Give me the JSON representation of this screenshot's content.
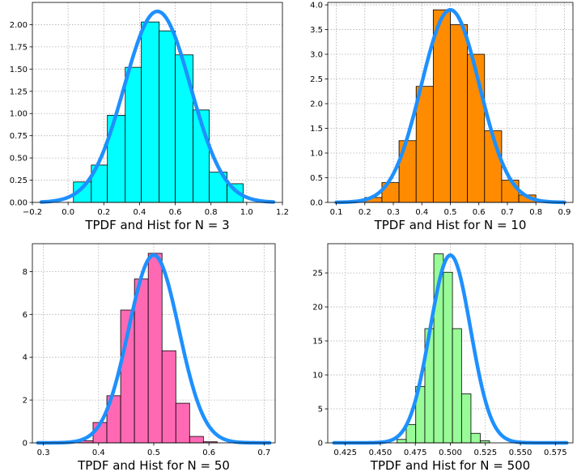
{
  "chart_data": [
    {
      "type": "bar",
      "xlabel": "TPDF and Hist for N = 3",
      "bar_color": "#00ffff",
      "curve_color": "#1e90ff",
      "xlim": [
        -0.2,
        1.2
      ],
      "ylim": [
        0,
        2.25
      ],
      "xticks": [
        -0.2,
        0.0,
        0.2,
        0.4,
        0.6,
        0.8,
        1.0,
        1.2
      ],
      "xtick_labels": [
        "−0.2",
        "0.0",
        "0.2",
        "0.4",
        "0.6",
        "0.8",
        "1.0",
        "1.2"
      ],
      "yticks": [
        0.0,
        0.25,
        0.5,
        0.75,
        1.0,
        1.25,
        1.5,
        1.75,
        2.0
      ],
      "ytick_labels": [
        "0.00",
        "0.25",
        "0.50",
        "0.75",
        "1.00",
        "1.25",
        "1.50",
        "1.75",
        "2.00"
      ],
      "bin_edges": [
        0.03,
        0.13,
        0.22,
        0.32,
        0.41,
        0.51,
        0.6,
        0.7,
        0.79,
        0.89,
        0.98
      ],
      "values": [
        0.23,
        0.42,
        0.98,
        1.52,
        2.03,
        1.93,
        1.66,
        1.04,
        0.34,
        0.21
      ],
      "curve": {
        "mean": 0.5,
        "std": 0.1856,
        "x_range": [
          -0.15,
          1.15
        ]
      },
      "grid": true
    },
    {
      "type": "bar",
      "xlabel": "TPDF and Hist for N = 10",
      "bar_color": "#ff8c00",
      "curve_color": "#1e90ff",
      "xlim": [
        0.07,
        0.93
      ],
      "ylim": [
        0,
        4.05
      ],
      "xticks": [
        0.1,
        0.2,
        0.3,
        0.4,
        0.5,
        0.6,
        0.7,
        0.8,
        0.9
      ],
      "xtick_labels": [
        "0.1",
        "0.2",
        "0.3",
        "0.4",
        "0.5",
        "0.6",
        "0.7",
        "0.8",
        "0.9"
      ],
      "yticks": [
        0.0,
        0.5,
        1.0,
        1.5,
        2.0,
        2.5,
        3.0,
        3.5,
        4.0
      ],
      "ytick_labels": [
        "0.0",
        "0.5",
        "1.0",
        "1.5",
        "2.0",
        "2.5",
        "3.0",
        "3.5",
        "4.0"
      ],
      "bin_edges": [
        0.2,
        0.26,
        0.32,
        0.38,
        0.44,
        0.5,
        0.56,
        0.62,
        0.68,
        0.74,
        0.8
      ],
      "values": [
        0.1,
        0.4,
        1.25,
        2.35,
        3.9,
        3.6,
        3.0,
        1.45,
        0.45,
        0.15
      ],
      "curve": {
        "mean": 0.5,
        "std": 0.1023,
        "x_range": [
          0.1,
          0.9
        ]
      },
      "grid": true
    },
    {
      "type": "bar",
      "xlabel": "TPDF and Hist for N = 50",
      "bar_color": "#ff69b4",
      "curve_color": "#1e90ff",
      "xlim": [
        0.28,
        0.72
      ],
      "ylim": [
        0,
        9.3
      ],
      "xticks": [
        0.3,
        0.4,
        0.5,
        0.6,
        0.7
      ],
      "xtick_labels": [
        "0.3",
        "0.4",
        "0.5",
        "0.6",
        "0.7"
      ],
      "yticks": [
        0,
        2,
        4,
        6,
        8
      ],
      "ytick_labels": [
        "0",
        "2",
        "4",
        "6",
        "8"
      ],
      "bin_edges": [
        0.365,
        0.39,
        0.415,
        0.44,
        0.465,
        0.49,
        0.515,
        0.54,
        0.565,
        0.59,
        0.615
      ],
      "values": [
        0.1,
        0.95,
        2.2,
        6.2,
        7.65,
        8.85,
        4.3,
        1.85,
        0.3,
        0.05
      ],
      "curve": {
        "mean": 0.5,
        "std": 0.0455,
        "x_range": [
          0.29,
          0.71
        ]
      },
      "grid": true
    },
    {
      "type": "bar",
      "xlabel": "TPDF and Hist for N = 500",
      "bar_color": "#98fb98",
      "curve_color": "#1e90ff",
      "xlim": [
        0.4125,
        0.5875
      ],
      "ylim": [
        0,
        29.3
      ],
      "xticks": [
        0.425,
        0.45,
        0.475,
        0.5,
        0.525,
        0.55,
        0.575
      ],
      "xtick_labels": [
        "0.425",
        "0.450",
        "0.475",
        "0.500",
        "0.525",
        "0.550",
        "0.575"
      ],
      "yticks": [
        0,
        5,
        10,
        15,
        20,
        25
      ],
      "ytick_labels": [
        "0",
        "5",
        "10",
        "15",
        "20",
        "25"
      ],
      "bin_edges": [
        0.462,
        0.4685,
        0.4753,
        0.4818,
        0.4882,
        0.495,
        0.5015,
        0.508,
        0.5147,
        0.5213,
        0.528
      ],
      "values": [
        0.5,
        2.7,
        8.3,
        16.8,
        27.8,
        25.1,
        16.8,
        7.2,
        1.4,
        0.3
      ],
      "curve": {
        "mean": 0.5,
        "std": 0.01445,
        "x_range": [
          0.417,
          0.583
        ]
      },
      "grid": true
    }
  ]
}
